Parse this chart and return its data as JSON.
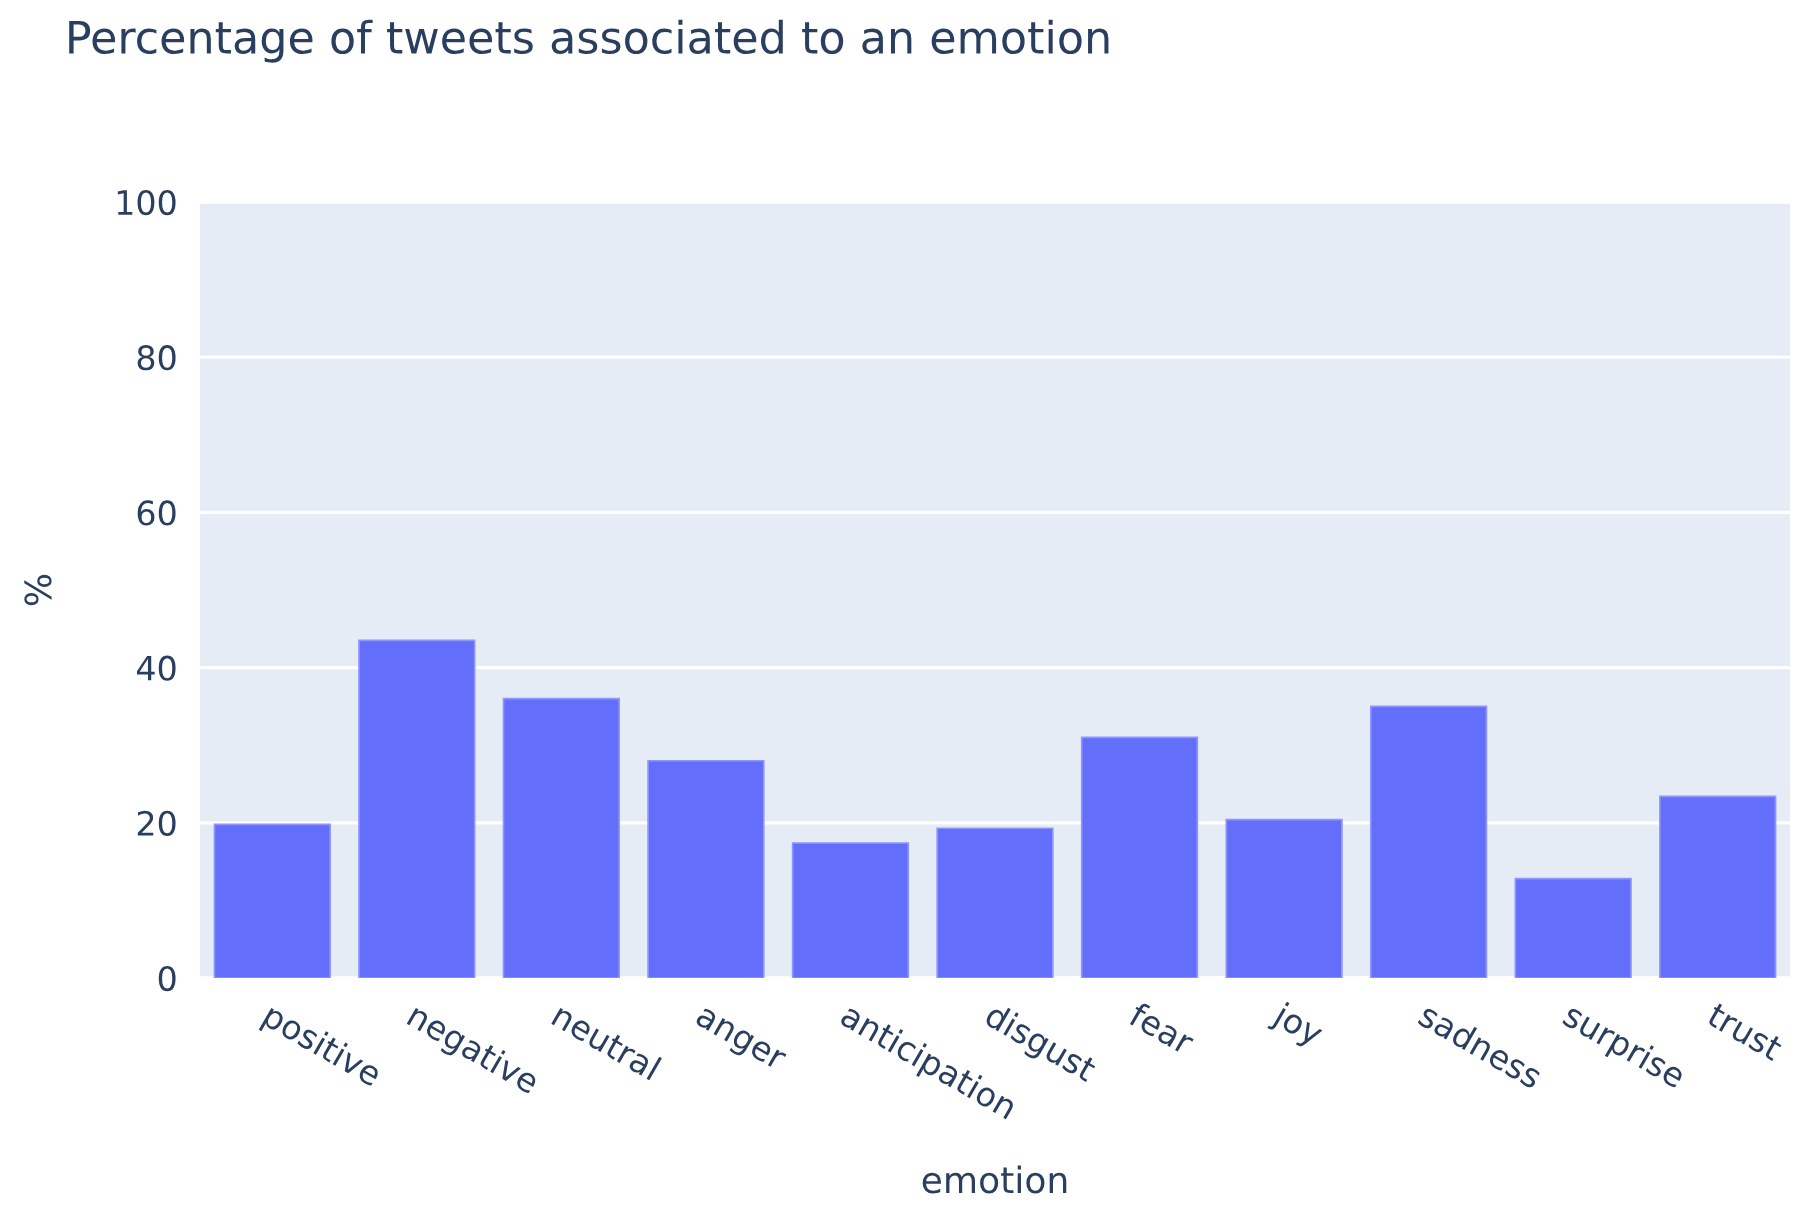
{
  "chart_data": {
    "type": "bar",
    "title": "Percentage of tweets associated to an emotion",
    "xlabel": "emotion",
    "ylabel": "%",
    "categories": [
      "positive",
      "negative",
      "neutral",
      "anger",
      "anticipation",
      "disgust",
      "fear",
      "joy",
      "sadness",
      "surprise",
      "trust"
    ],
    "values": [
      19.8,
      43.5,
      36.0,
      28.0,
      17.4,
      19.3,
      31.0,
      20.4,
      35.0,
      12.8,
      23.4
    ],
    "color": "#636efa",
    "ylim": [
      0,
      100
    ],
    "yticks": [
      0,
      20,
      40,
      60,
      80,
      100
    ],
    "grid": "y",
    "legend": false
  }
}
